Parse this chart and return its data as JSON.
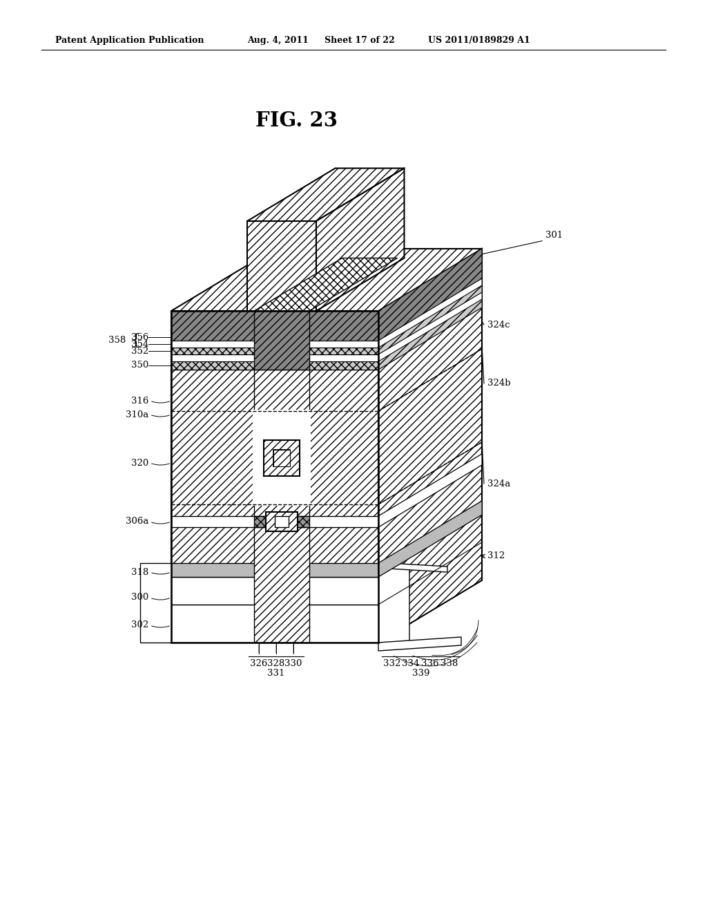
{
  "title": "FIG. 23",
  "header_left": "Patent Application Publication",
  "header_mid": "Aug. 4, 2011   Sheet 17 of 22",
  "header_right": "US 2011/0189829 A1",
  "bg_color": "#ffffff",
  "line_color": "#000000",
  "fig_label": "301"
}
